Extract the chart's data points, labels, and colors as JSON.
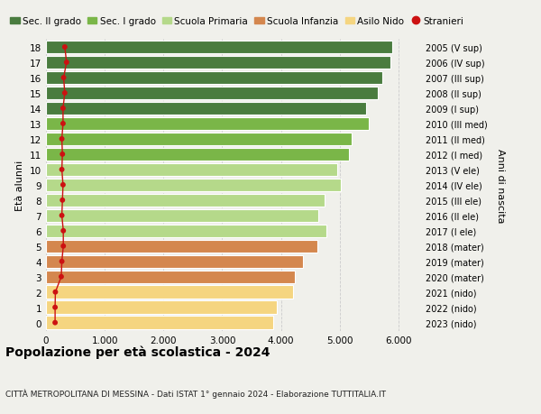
{
  "ages": [
    18,
    17,
    16,
    15,
    14,
    13,
    12,
    11,
    10,
    9,
    8,
    7,
    6,
    5,
    4,
    3,
    2,
    1,
    0
  ],
  "right_labels": [
    "2005 (V sup)",
    "2006 (IV sup)",
    "2007 (III sup)",
    "2008 (II sup)",
    "2009 (I sup)",
    "2010 (III med)",
    "2011 (II med)",
    "2012 (I med)",
    "2013 (V ele)",
    "2014 (IV ele)",
    "2015 (III ele)",
    "2016 (II ele)",
    "2017 (I ele)",
    "2018 (mater)",
    "2019 (mater)",
    "2020 (mater)",
    "2021 (nido)",
    "2022 (nido)",
    "2023 (nido)"
  ],
  "bar_values": [
    5900,
    5870,
    5720,
    5650,
    5450,
    5500,
    5200,
    5150,
    4950,
    5020,
    4750,
    4630,
    4780,
    4620,
    4380,
    4230,
    4200,
    3930,
    3870
  ],
  "stranieri_values": [
    320,
    350,
    300,
    320,
    290,
    290,
    270,
    280,
    270,
    290,
    280,
    270,
    295,
    295,
    270,
    260,
    160,
    155,
    155
  ],
  "bar_colors": [
    "#4a7c3f",
    "#4a7c3f",
    "#4a7c3f",
    "#4a7c3f",
    "#4a7c3f",
    "#7ab648",
    "#7ab648",
    "#7ab648",
    "#b5d98a",
    "#b5d98a",
    "#b5d98a",
    "#b5d98a",
    "#b5d98a",
    "#d4874e",
    "#d4874e",
    "#d4874e",
    "#f5d580",
    "#f5d580",
    "#f5d580"
  ],
  "legend_labels": [
    "Sec. II grado",
    "Sec. I grado",
    "Scuola Primaria",
    "Scuola Infanzia",
    "Asilo Nido",
    "Stranieri"
  ],
  "legend_colors": [
    "#4a7c3f",
    "#7ab648",
    "#b5d98a",
    "#d4874e",
    "#f5d580",
    "#cc1111"
  ],
  "stranieri_color": "#cc1111",
  "title": "Popolazione per età scolastica - 2024",
  "subtitle": "CITTÀ METROPOLITANA DI MESSINA - Dati ISTAT 1° gennaio 2024 - Elaborazione TUTTITALIA.IT",
  "ylabel_left": "Età alunni",
  "ylabel_right": "Anni di nascita",
  "xlim": [
    0,
    6400
  ],
  "background_color": "#f0f0eb",
  "bar_height": 0.85,
  "grid_color": "#cccccc"
}
